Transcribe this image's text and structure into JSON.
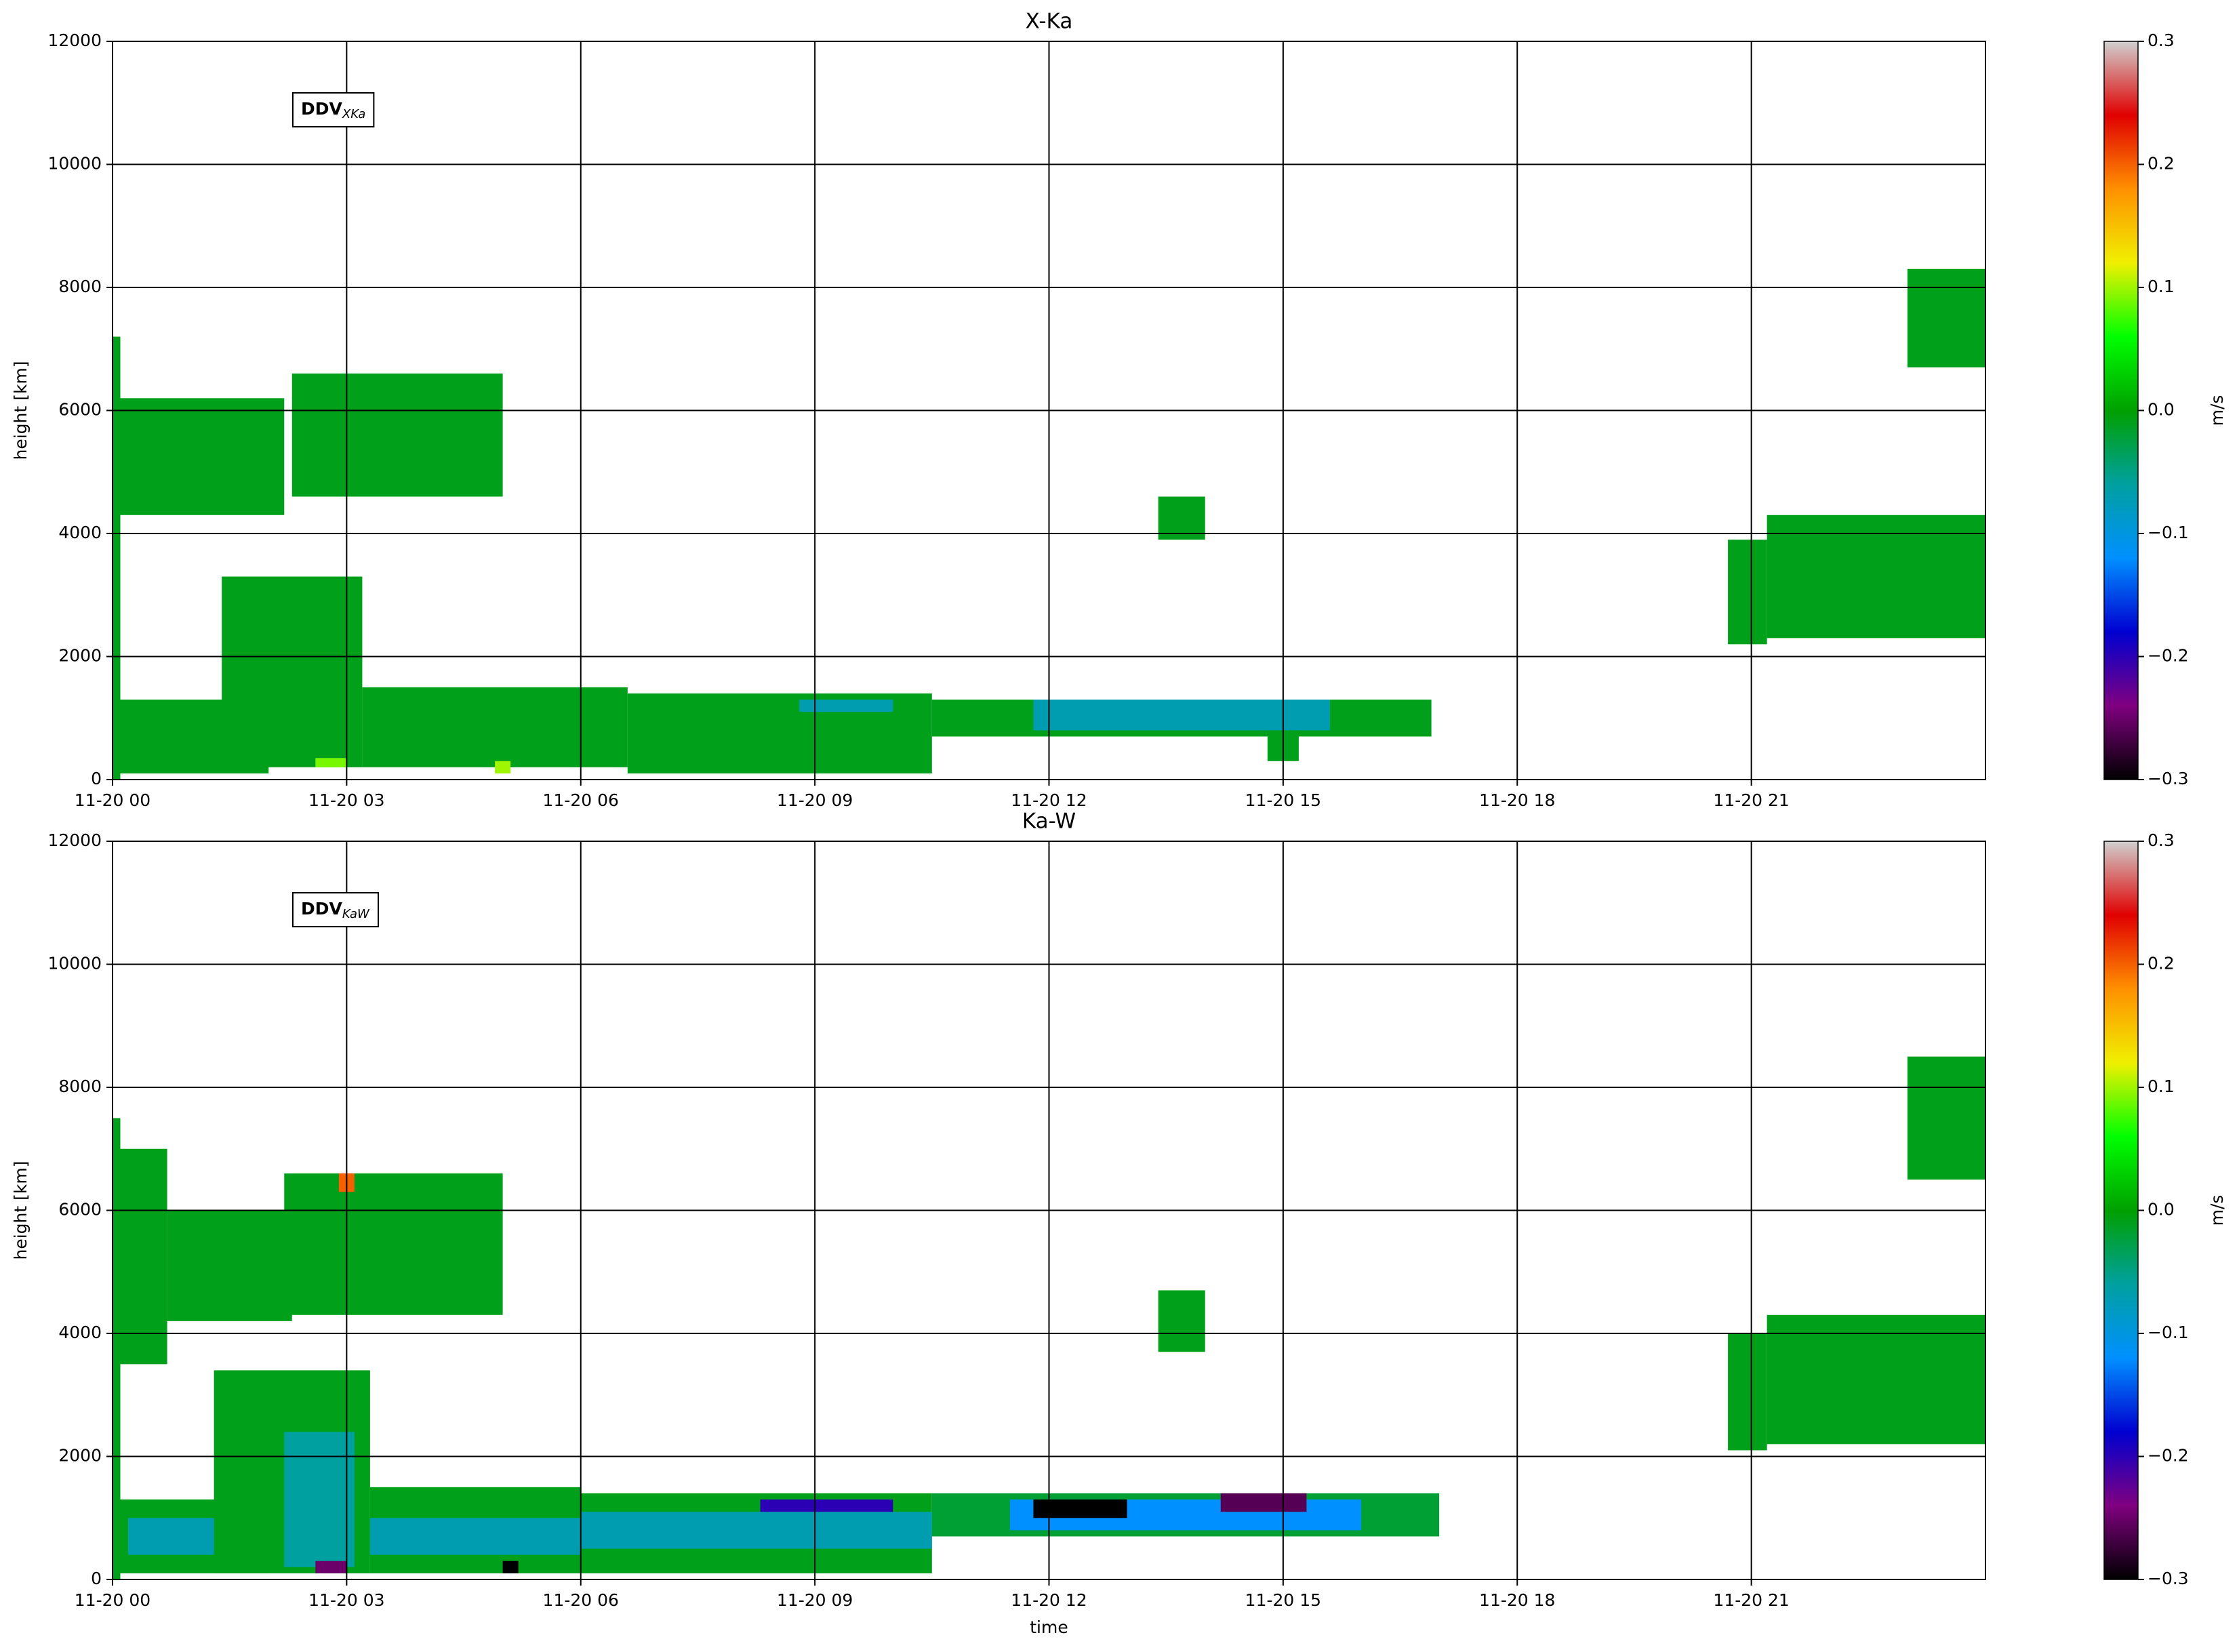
{
  "chart_data": [
    {
      "type": "heatmap",
      "title": "X-Ka",
      "ylabel": "height [km]",
      "annotation": {
        "text": "DDV",
        "subscript": "XKa"
      },
      "xlim": [
        0,
        24
      ],
      "xticks": [
        {
          "value": 0,
          "label": "11-20 00"
        },
        {
          "value": 3,
          "label": "11-20 03"
        },
        {
          "value": 6,
          "label": "11-20 06"
        },
        {
          "value": 9,
          "label": "11-20 09"
        },
        {
          "value": 12,
          "label": "11-20 12"
        },
        {
          "value": 15,
          "label": "11-20 15"
        },
        {
          "value": 18,
          "label": "11-20 18"
        },
        {
          "value": 21,
          "label": "11-20 21"
        }
      ],
      "ylim": [
        0,
        12000
      ],
      "yticks": [
        0,
        2000,
        4000,
        6000,
        8000,
        10000,
        12000
      ],
      "grid": true,
      "clim": [
        -0.3,
        0.3
      ],
      "cticks": [
        {
          "value": -0.3,
          "label": "−0.3"
        },
        {
          "value": -0.2,
          "label": "−0.2"
        },
        {
          "value": -0.1,
          "label": "−0.1"
        },
        {
          "value": 0,
          "label": "0.0"
        },
        0.1,
        0.2,
        0.3
      ],
      "clabel": "m/s",
      "colors": [
        "#000000",
        "#800080",
        "#0000d0",
        "#0090ff",
        "#00a0a0",
        "#00a000",
        "#00ff00",
        "#f0f000",
        "#ff9000",
        "#e00000",
        "#d0d0d0"
      ],
      "cells": [
        {
          "x": [
            0,
            0.1
          ],
          "y": [
            0,
            7200
          ],
          "value": -0.01
        },
        {
          "x": [
            0,
            2
          ],
          "y": [
            100,
            1300
          ],
          "value": -0.01
        },
        {
          "x": [
            1.4,
            3.2
          ],
          "y": [
            200,
            3300
          ],
          "value": -0.01
        },
        {
          "x": [
            3.2,
            6.6
          ],
          "y": [
            200,
            1500
          ],
          "value": -0.01
        },
        {
          "x": [
            6.6,
            10.5
          ],
          "y": [
            100,
            1400
          ],
          "value": -0.01
        },
        {
          "x": [
            8.8,
            10
          ],
          "y": [
            1100,
            1300
          ],
          "value": -0.07
        },
        {
          "x": [
            10.5,
            16.9
          ],
          "y": [
            700,
            1300
          ],
          "value": -0.01
        },
        {
          "x": [
            11.8,
            15.6
          ],
          "y": [
            800,
            1300
          ],
          "value": -0.07
        },
        {
          "x": [
            14.8,
            15.2
          ],
          "y": [
            300,
            800
          ],
          "value": -0.01
        },
        {
          "x": [
            2.6,
            3
          ],
          "y": [
            200,
            350
          ],
          "value": 0.09
        },
        {
          "x": [
            4.9,
            5.1
          ],
          "y": [
            100,
            300
          ],
          "value": 0.1
        },
        {
          "x": [
            0.1,
            2.2
          ],
          "y": [
            4300,
            6200
          ],
          "value": -0.01
        },
        {
          "x": [
            2.3,
            5
          ],
          "y": [
            4600,
            6600
          ],
          "value": -0.01
        },
        {
          "x": [
            13.4,
            14
          ],
          "y": [
            3900,
            4600
          ],
          "value": -0.01
        },
        {
          "x": [
            20.7,
            21.2
          ],
          "y": [
            2200,
            3900
          ],
          "value": -0.01
        },
        {
          "x": [
            21.2,
            24
          ],
          "y": [
            2300,
            4300
          ],
          "value": -0.01
        },
        {
          "x": [
            23,
            24
          ],
          "y": [
            6700,
            8300
          ],
          "value": -0.01
        }
      ]
    },
    {
      "type": "heatmap",
      "title": "Ka-W",
      "xlabel": "time",
      "ylabel": "height [km]",
      "annotation": {
        "text": "DDV",
        "subscript": "KaW"
      },
      "xlim": [
        0,
        24
      ],
      "xticks": [
        {
          "value": 0,
          "label": "11-20 00"
        },
        {
          "value": 3,
          "label": "11-20 03"
        },
        {
          "value": 6,
          "label": "11-20 06"
        },
        {
          "value": 9,
          "label": "11-20 09"
        },
        {
          "value": 12,
          "label": "11-20 12"
        },
        {
          "value": 15,
          "label": "11-20 15"
        },
        {
          "value": 18,
          "label": "11-20 18"
        },
        {
          "value": 21,
          "label": "11-20 21"
        }
      ],
      "ylim": [
        0,
        12000
      ],
      "yticks": [
        0,
        2000,
        4000,
        6000,
        8000,
        10000,
        12000
      ],
      "grid": true,
      "clim": [
        -0.3,
        0.3
      ],
      "cticks": [
        {
          "value": -0.3,
          "label": "−0.3"
        },
        {
          "value": -0.2,
          "label": "−0.2"
        },
        {
          "value": -0.1,
          "label": "−0.1"
        },
        {
          "value": 0,
          "label": "0.0"
        },
        0.1,
        0.2,
        0.3
      ],
      "clabel": "m/s",
      "colors": [
        "#000000",
        "#800080",
        "#0000d0",
        "#0090ff",
        "#00a0a0",
        "#00a000",
        "#00ff00",
        "#f0f000",
        "#ff9000",
        "#e00000",
        "#d0d0d0"
      ],
      "cells": [
        {
          "x": [
            0,
            0.1
          ],
          "y": [
            0,
            7500
          ],
          "value": -0.01
        },
        {
          "x": [
            0,
            2
          ],
          "y": [
            100,
            1300
          ],
          "value": -0.01
        },
        {
          "x": [
            0.2,
            2
          ],
          "y": [
            400,
            1000
          ],
          "value": -0.07
        },
        {
          "x": [
            1.3,
            3.3
          ],
          "y": [
            100,
            3400
          ],
          "value": -0.01
        },
        {
          "x": [
            2.2,
            3.1
          ],
          "y": [
            200,
            2400
          ],
          "value": -0.06
        },
        {
          "x": [
            3.3,
            6
          ],
          "y": [
            100,
            1500
          ],
          "value": -0.01
        },
        {
          "x": [
            3.3,
            6
          ],
          "y": [
            400,
            1000
          ],
          "value": -0.07
        },
        {
          "x": [
            6,
            10.5
          ],
          "y": [
            100,
            1400
          ],
          "value": -0.01
        },
        {
          "x": [
            6,
            10.5
          ],
          "y": [
            500,
            1100
          ],
          "value": -0.07
        },
        {
          "x": [
            8.3,
            10
          ],
          "y": [
            1100,
            1300
          ],
          "value": -0.2
        },
        {
          "x": [
            10.5,
            17
          ],
          "y": [
            700,
            1400
          ],
          "value": -0.02
        },
        {
          "x": [
            11.5,
            16
          ],
          "y": [
            800,
            1300
          ],
          "value": -0.12
        },
        {
          "x": [
            11.8,
            13
          ],
          "y": [
            1000,
            1300
          ],
          "value": -0.3
        },
        {
          "x": [
            14.2,
            15.3
          ],
          "y": [
            1100,
            1400
          ],
          "value": -0.26
        },
        {
          "x": [
            2.6,
            3
          ],
          "y": [
            100,
            300
          ],
          "value": -0.25
        },
        {
          "x": [
            5,
            5.2
          ],
          "y": [
            100,
            300
          ],
          "value": -0.3
        },
        {
          "x": [
            0.1,
            0.7
          ],
          "y": [
            3500,
            7000
          ],
          "value": -0.01
        },
        {
          "x": [
            0.7,
            2.3
          ],
          "y": [
            4200,
            6000
          ],
          "value": -0.01
        },
        {
          "x": [
            2.2,
            5
          ],
          "y": [
            4300,
            6600
          ],
          "value": -0.01
        },
        {
          "x": [
            2.9,
            3.1
          ],
          "y": [
            6300,
            6600
          ],
          "value": 0.2
        },
        {
          "x": [
            13.4,
            14
          ],
          "y": [
            3700,
            4700
          ],
          "value": -0.01
        },
        {
          "x": [
            20.7,
            21.2
          ],
          "y": [
            2100,
            4000
          ],
          "value": -0.01
        },
        {
          "x": [
            21.2,
            24
          ],
          "y": [
            2200,
            4300
          ],
          "value": -0.01
        },
        {
          "x": [
            23,
            24
          ],
          "y": [
            6500,
            8500
          ],
          "value": -0.01
        }
      ]
    }
  ]
}
